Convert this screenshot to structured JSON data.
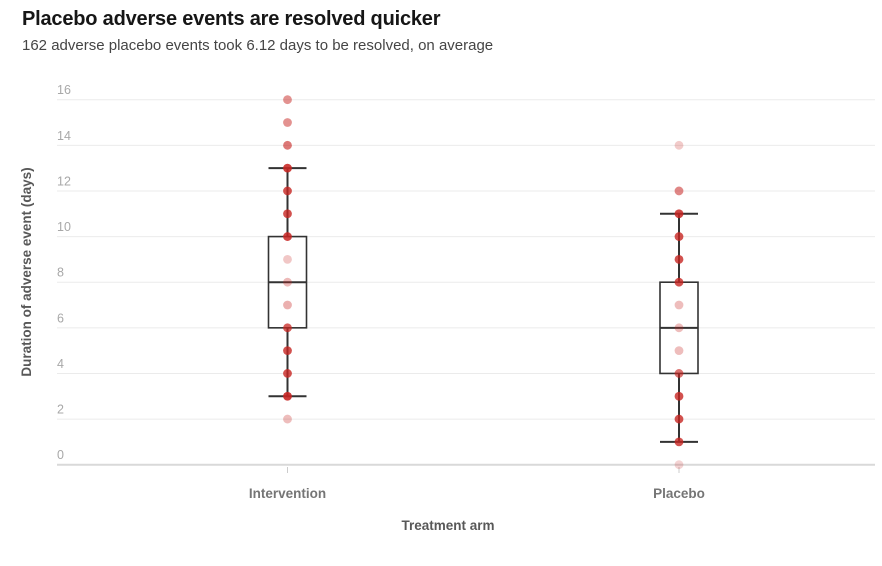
{
  "header": {
    "title": "Placebo adverse events are resolved quicker",
    "subtitle": "162 adverse placebo events took 6.12 days to be resolved, on average"
  },
  "chart_data": {
    "type": "boxplot",
    "title": "Placebo adverse events are resolved quicker",
    "subtitle": "162 adverse placebo events took 6.12 days to be resolved, on average",
    "xlabel": "Treatment arm",
    "ylabel": "Duration of adverse event (days)",
    "ylim": [
      0,
      16
    ],
    "yticks": [
      0,
      2,
      4,
      6,
      8,
      10,
      12,
      14,
      16
    ],
    "grid": "horizontal",
    "legend": "none",
    "categories": [
      "Intervention",
      "Placebo"
    ],
    "series": [
      {
        "name": "Intervention",
        "box": {
          "whisker_low": 3,
          "q1": 6,
          "median": 8,
          "q3": 10,
          "whisker_high": 13
        },
        "points": [
          {
            "value": 16,
            "opacity": 0.5
          },
          {
            "value": 15,
            "opacity": 0.5
          },
          {
            "value": 14,
            "opacity": 0.62
          },
          {
            "value": 13,
            "opacity": 0.88
          },
          {
            "value": 12,
            "opacity": 0.8
          },
          {
            "value": 11,
            "opacity": 0.8
          },
          {
            "value": 10,
            "opacity": 0.85
          },
          {
            "value": 9,
            "opacity": 0.26
          },
          {
            "value": 8,
            "opacity": 0.32
          },
          {
            "value": 7,
            "opacity": 0.36
          },
          {
            "value": 6,
            "opacity": 0.75
          },
          {
            "value": 5,
            "opacity": 0.8
          },
          {
            "value": 4,
            "opacity": 0.8
          },
          {
            "value": 3,
            "opacity": 0.9
          },
          {
            "value": 2,
            "opacity": 0.3
          }
        ]
      },
      {
        "name": "Placebo",
        "box": {
          "whisker_low": 1,
          "q1": 4,
          "median": 6,
          "q3": 8,
          "whisker_high": 11
        },
        "points": [
          {
            "value": 14,
            "opacity": 0.24
          },
          {
            "value": 12,
            "opacity": 0.55
          },
          {
            "value": 11,
            "opacity": 0.85
          },
          {
            "value": 10,
            "opacity": 0.8
          },
          {
            "value": 9,
            "opacity": 0.8
          },
          {
            "value": 8,
            "opacity": 0.8
          },
          {
            "value": 7,
            "opacity": 0.3
          },
          {
            "value": 6,
            "opacity": 0.3
          },
          {
            "value": 5,
            "opacity": 0.3
          },
          {
            "value": 4,
            "opacity": 0.65
          },
          {
            "value": 3,
            "opacity": 0.8
          },
          {
            "value": 2,
            "opacity": 0.8
          },
          {
            "value": 1,
            "opacity": 0.8
          },
          {
            "value": 0,
            "opacity": 0.2
          }
        ]
      }
    ],
    "colors": {
      "point": "#c72522",
      "box_stroke": "#333333",
      "box_fill": "#ffffff",
      "gridline": "#ebebeb",
      "baseline": "#d9d9d9",
      "tick_mark": "#cccccc",
      "tick_label": "#a8a8a8",
      "category_label": "#757575",
      "axis_title": "#585858"
    }
  }
}
